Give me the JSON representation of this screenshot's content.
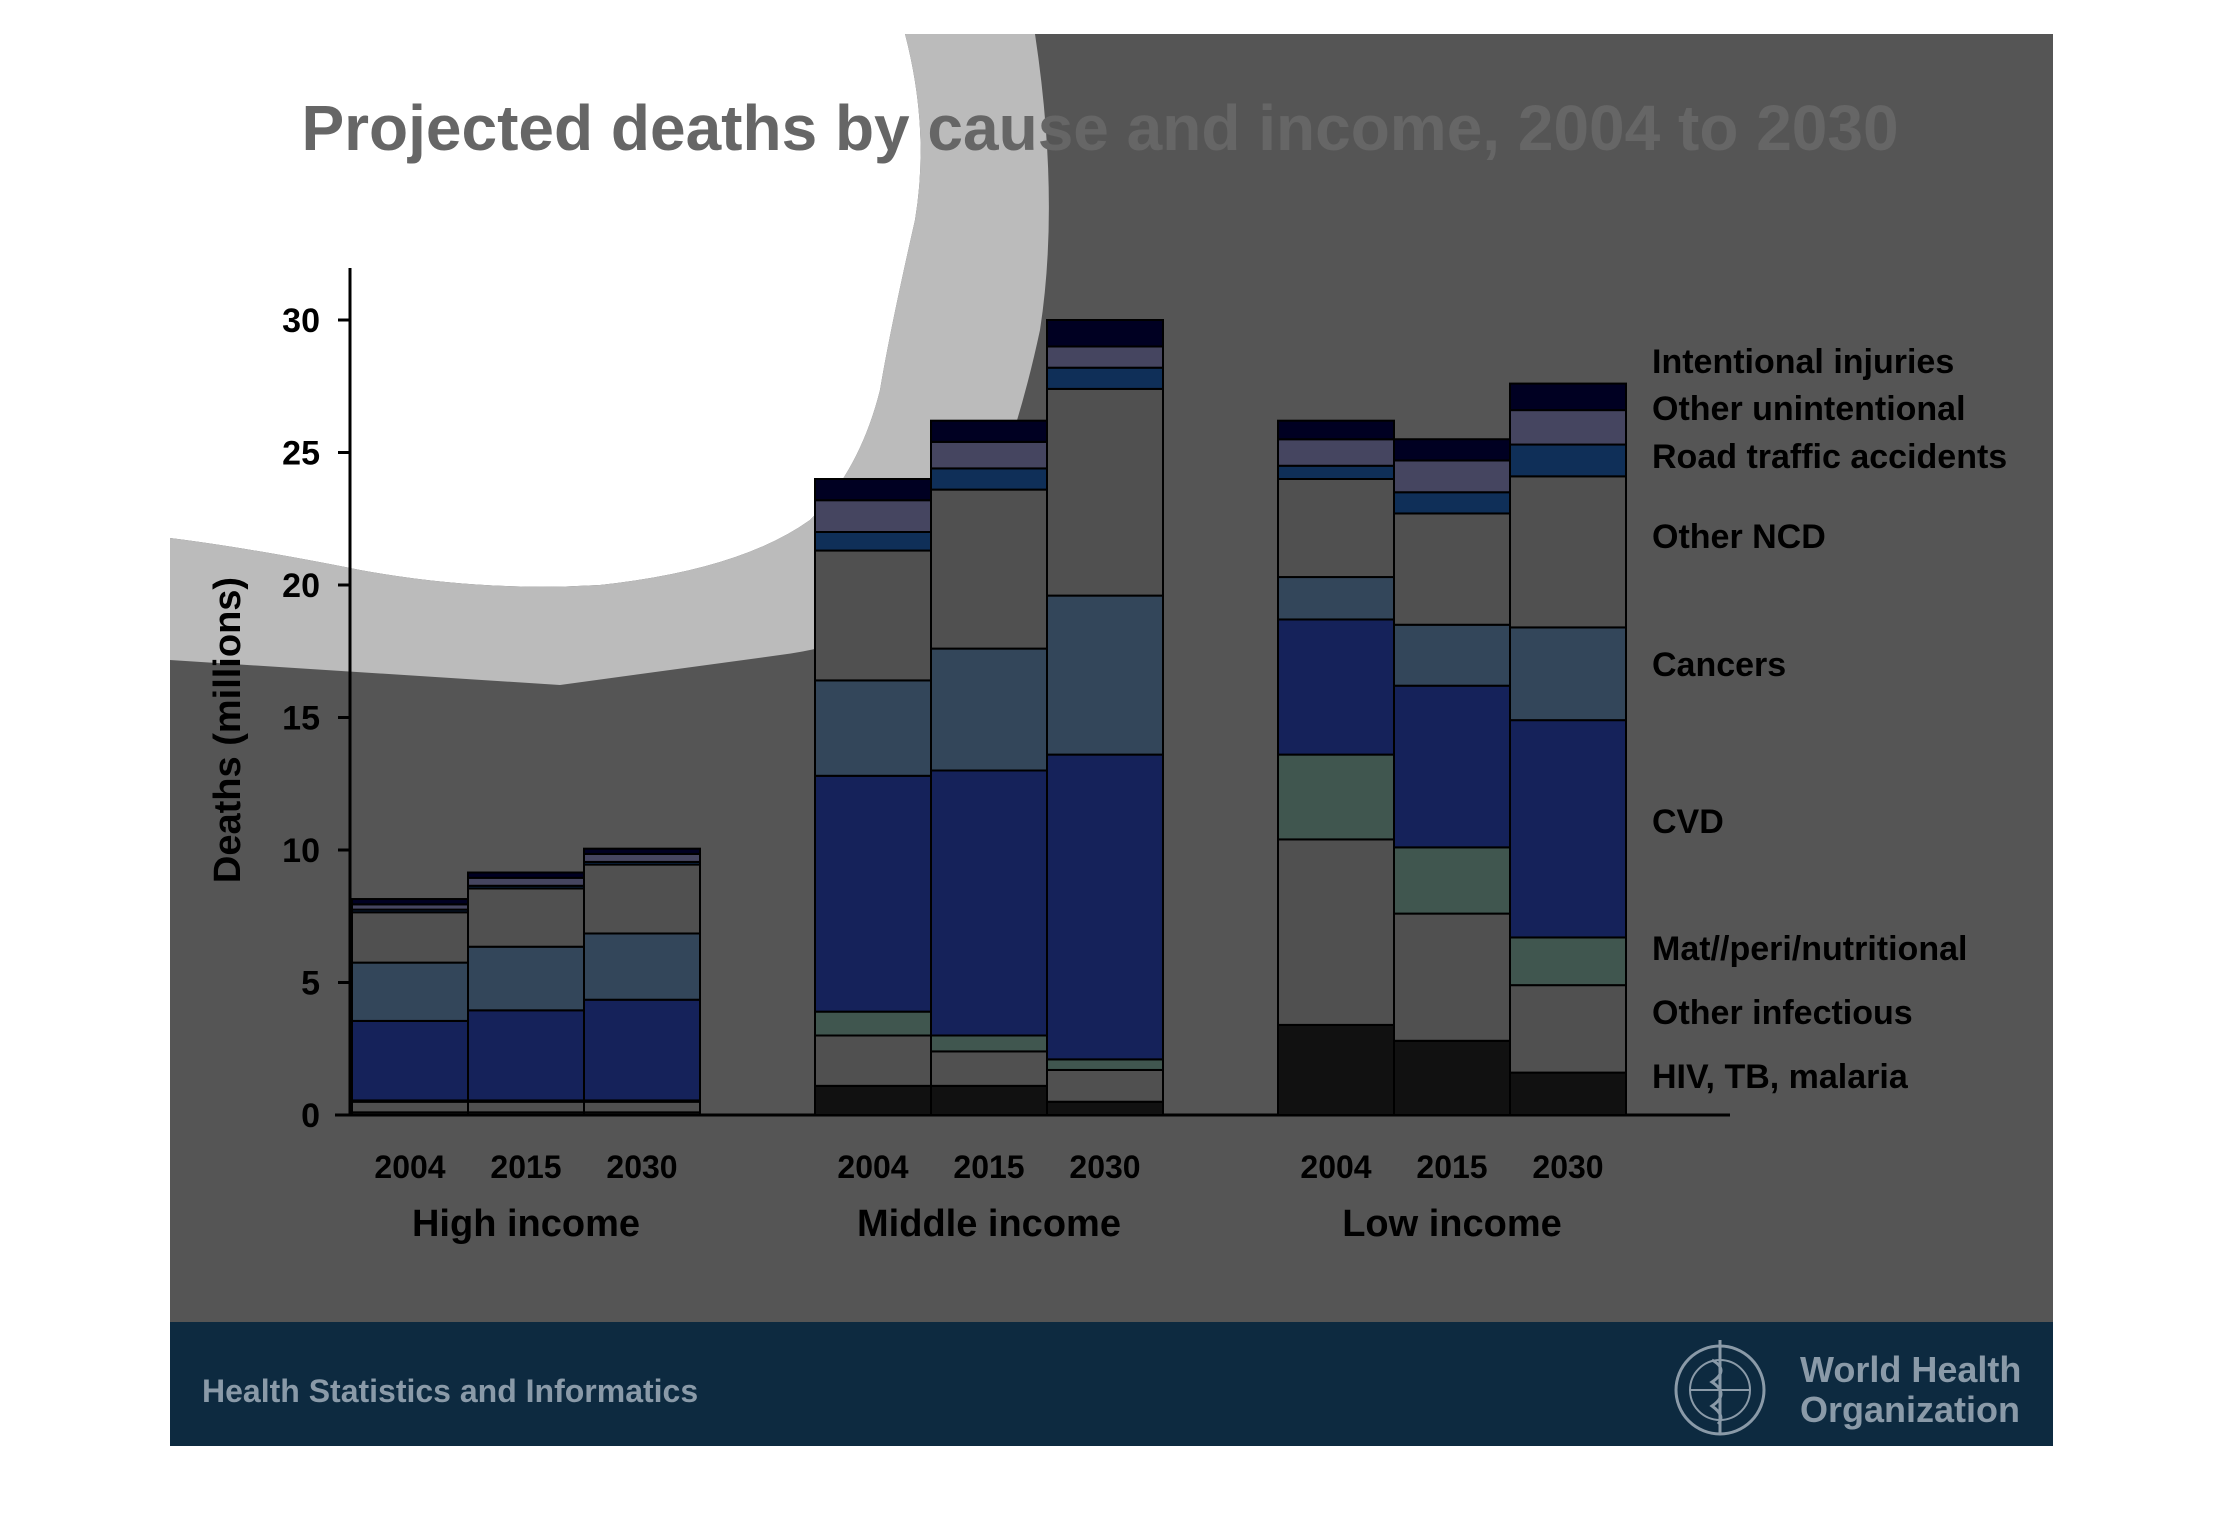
{
  "slide": {
    "title": "Projected deaths by cause and income, 2004 to 2030",
    "footer_text": "Health Statistics and Informatics",
    "logo_text": [
      "World Health",
      "Organization"
    ]
  },
  "chart_data": {
    "type": "bar",
    "stacked": true,
    "title": "Projected deaths by cause and income, 2004 to 2030",
    "ylabel": "Deaths (millions)",
    "xlabel": "",
    "ylim": [
      0,
      30
    ],
    "yticks": [
      0,
      5,
      10,
      15,
      20,
      25,
      30
    ],
    "groups": [
      "High income",
      "Middle income",
      "Low income"
    ],
    "years": [
      "2004",
      "2015",
      "2030"
    ],
    "categories": [
      "High income 2004",
      "High income 2015",
      "High income 2030",
      "Middle income 2004",
      "Middle income 2015",
      "Middle income 2030",
      "Low income 2004",
      "Low income 2015",
      "Low income 2030"
    ],
    "legend_position": "right",
    "series": [
      {
        "name": "HIV, TB, malaria",
        "color": "#111111",
        "values": [
          0.1,
          0.1,
          0.1,
          1.1,
          1.1,
          0.5,
          3.4,
          2.8,
          1.6
        ]
      },
      {
        "name": "Other infectious",
        "color": "#505050",
        "values": [
          0.4,
          0.4,
          0.4,
          1.9,
          1.3,
          1.2,
          7.0,
          4.8,
          3.3
        ]
      },
      {
        "name": "Mat//peri/nutritional",
        "color": "#40564f",
        "values": [
          0.05,
          0.05,
          0.05,
          0.9,
          0.6,
          0.4,
          3.2,
          2.5,
          1.8
        ]
      },
      {
        "name": "CVD",
        "color": "#15225a",
        "values": [
          3.0,
          3.4,
          3.8,
          8.9,
          10.0,
          11.5,
          5.1,
          6.1,
          8.2
        ]
      },
      {
        "name": "Cancers",
        "color": "#33465a",
        "values": [
          2.2,
          2.4,
          2.5,
          3.6,
          4.6,
          6.0,
          1.6,
          2.3,
          3.5
        ]
      },
      {
        "name": "Other NCD",
        "color": "#505050",
        "values": [
          1.9,
          2.2,
          2.6,
          4.9,
          6.0,
          7.8,
          3.7,
          4.2,
          5.7
        ]
      },
      {
        "name": "Road traffic accidents",
        "color": "#0f2f58",
        "values": [
          0.1,
          0.1,
          0.1,
          0.7,
          0.8,
          0.8,
          0.5,
          0.8,
          1.2
        ]
      },
      {
        "name": "Other unintentional",
        "color": "#454560",
        "values": [
          0.2,
          0.3,
          0.3,
          1.2,
          1.0,
          0.8,
          1.0,
          1.2,
          1.3
        ]
      },
      {
        "name": "Intentional injuries",
        "color": "#000022",
        "values": [
          0.2,
          0.2,
          0.2,
          0.8,
          0.8,
          1.0,
          0.7,
          0.8,
          1.0
        ]
      }
    ]
  }
}
